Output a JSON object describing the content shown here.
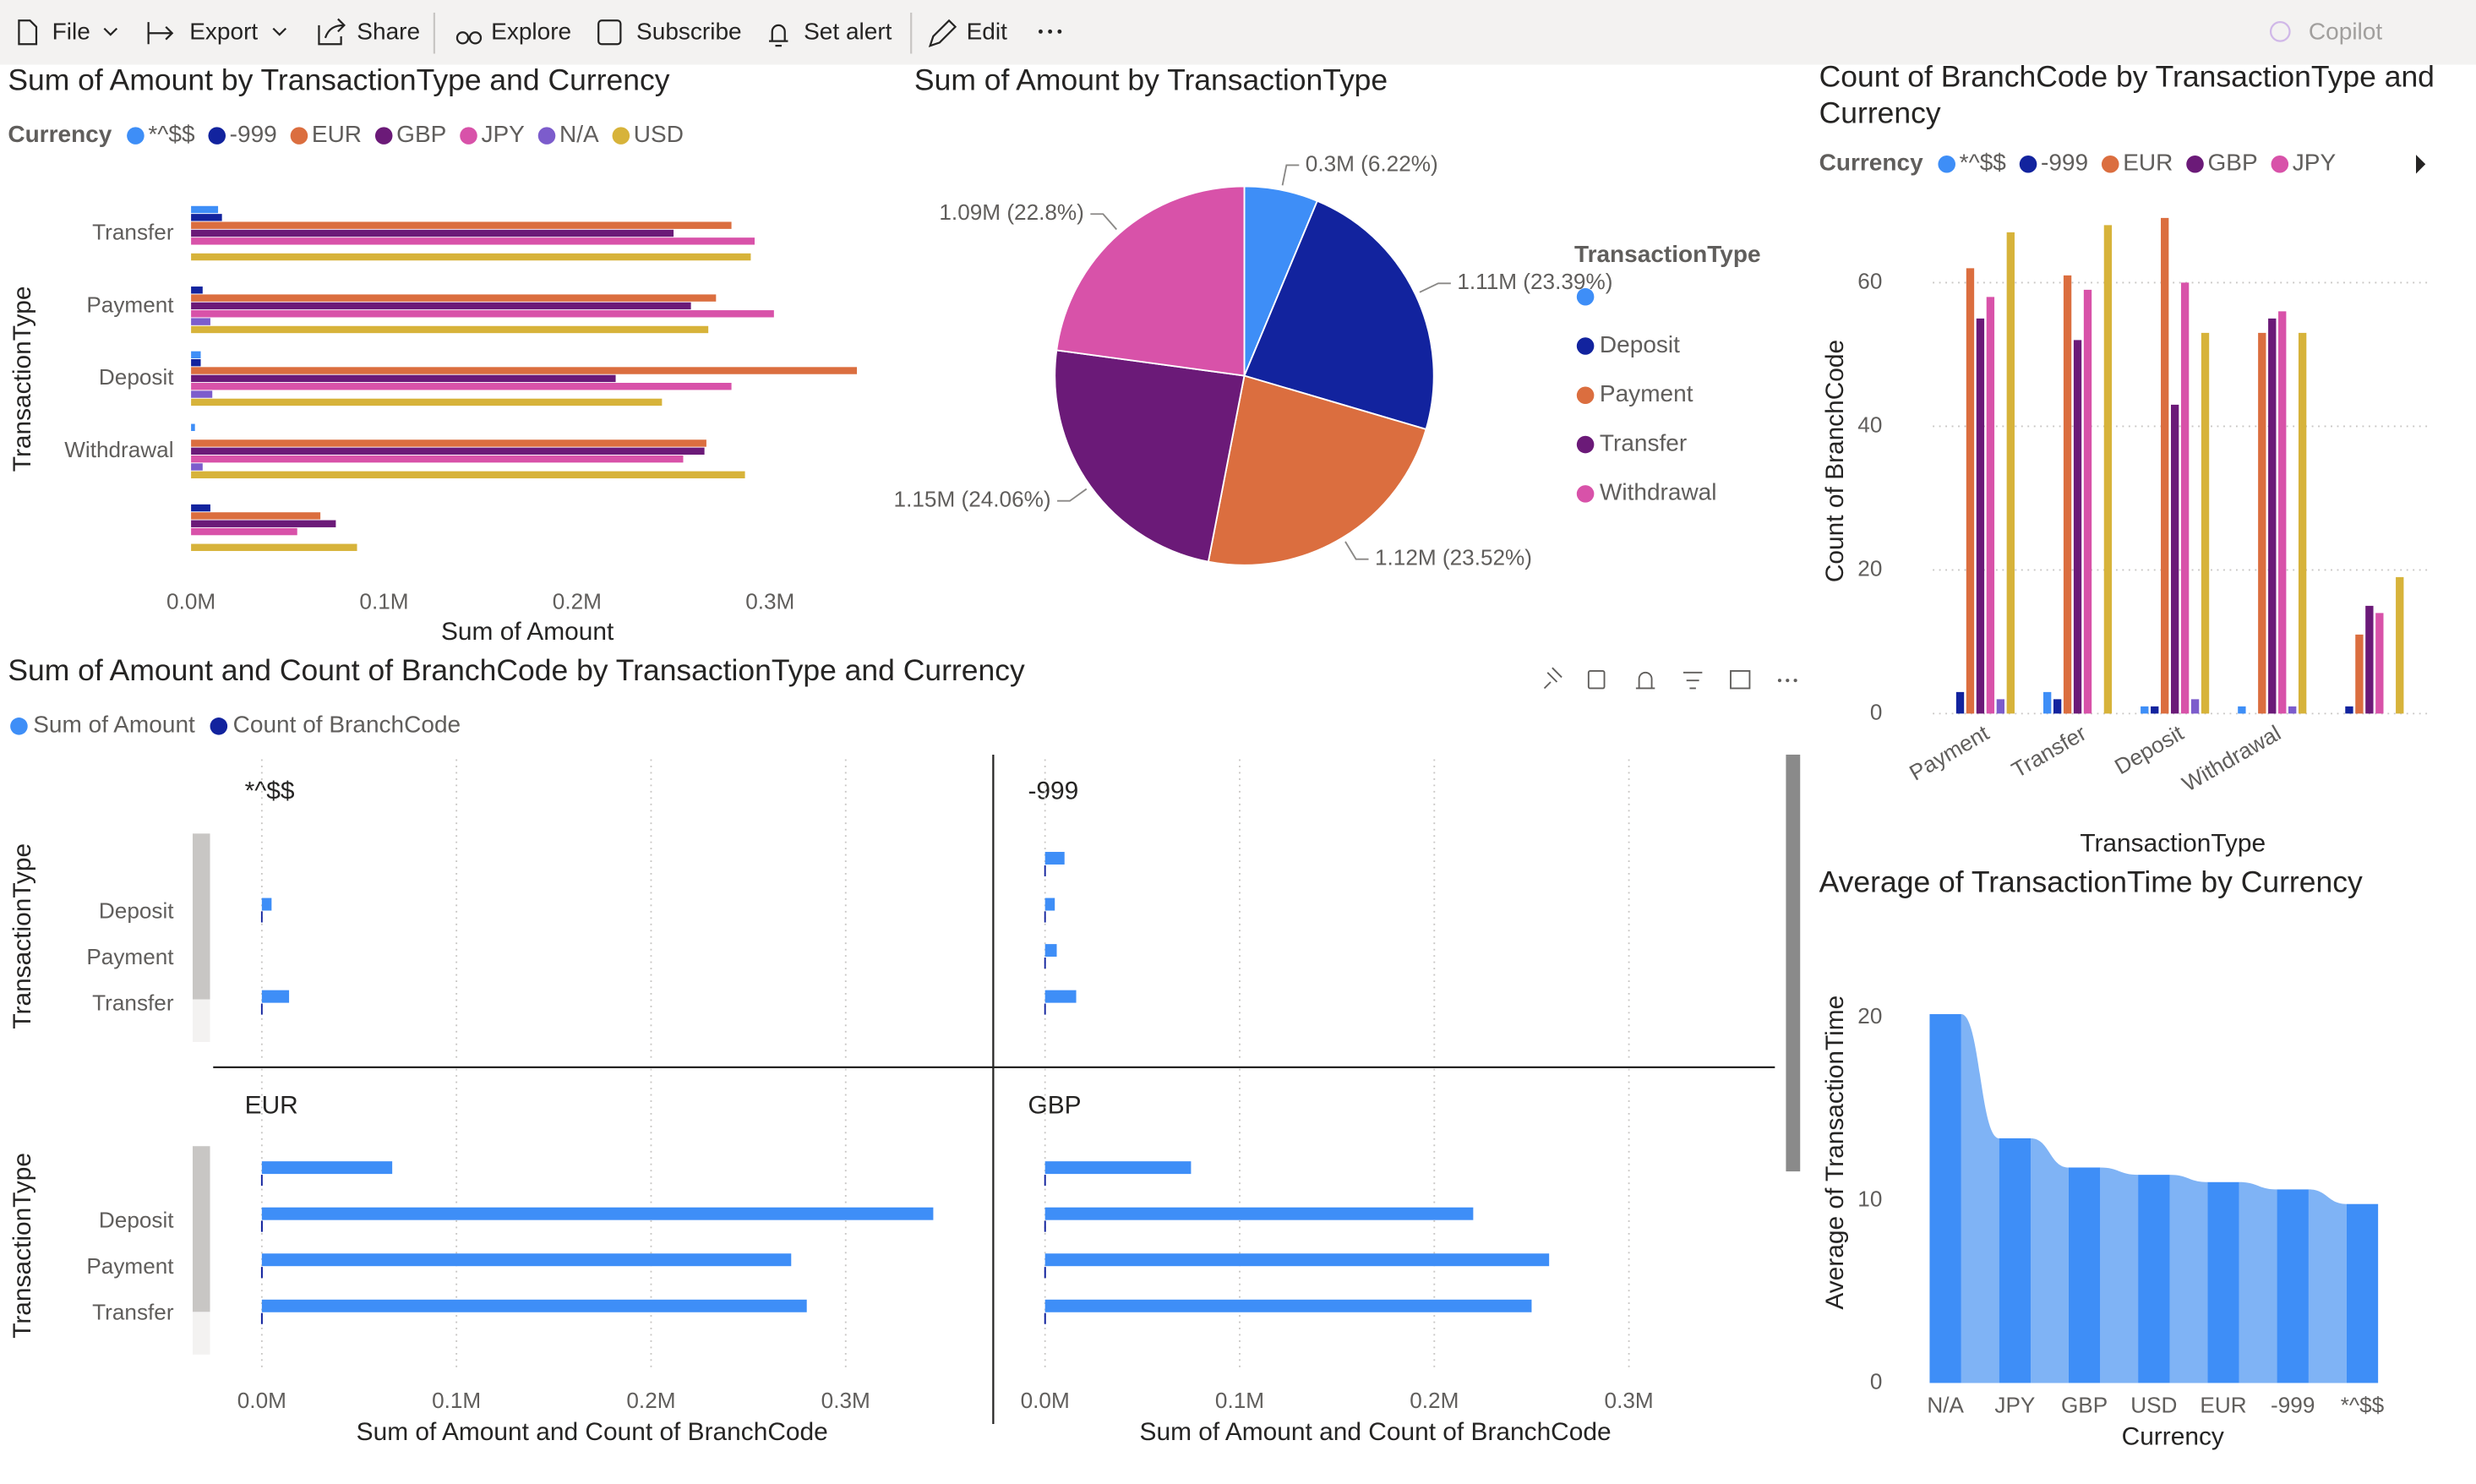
{
  "toolbar": {
    "items": [
      "File",
      "Export",
      "Share",
      "Explore",
      "Subscribe",
      "Set alert",
      "Edit"
    ],
    "copilot": "Copilot"
  },
  "chart_data": [
    {
      "type": "hbar",
      "title": "Sum of Amount by TransactionType and Currency",
      "legend_title": "Currency",
      "y_label": "TransactionType",
      "x_label": "Sum of Amount",
      "categories": [
        "Transfer",
        "Payment",
        "Deposit",
        "Withdrawal",
        null
      ],
      "series": [
        {
          "name": "*^$$",
          "color": "#3e8ef7",
          "values": [
            14000,
            null,
            5000,
            2000,
            null
          ]
        },
        {
          "name": "-999",
          "color": "#12239e",
          "values": [
            16000,
            6000,
            5000,
            null,
            10000
          ]
        },
        {
          "name": "EUR",
          "color": "#db6e3f",
          "values": [
            280000,
            272000,
            345000,
            267000,
            67000
          ]
        },
        {
          "name": "GBP",
          "color": "#6b1a78",
          "values": [
            250000,
            259000,
            220000,
            266000,
            75000
          ]
        },
        {
          "name": "JPY",
          "color": "#d852a9",
          "values": [
            292000,
            302000,
            280000,
            255000,
            55000
          ]
        },
        {
          "name": "N/A",
          "color": "#7c5ccc",
          "values": [
            null,
            10000,
            11000,
            6000,
            null
          ]
        },
        {
          "name": "USD",
          "color": "#d7b33a",
          "values": [
            290000,
            268000,
            244000,
            287000,
            86000
          ]
        }
      ],
      "xlim": [
        0,
        360000
      ],
      "xticks": [
        {
          "value": 0,
          "label": "0.0M"
        },
        {
          "value": 100000,
          "label": "0.1M"
        },
        {
          "value": 200000,
          "label": "0.2M"
        },
        {
          "value": 300000,
          "label": "0.3M"
        }
      ]
    },
    {
      "type": "pie",
      "title": "Sum of Amount by TransactionType",
      "legend_title": "TransactionType",
      "categories": [
        null,
        "Deposit",
        "Payment",
        "Transfer",
        "Withdrawal"
      ],
      "values": [
        300000,
        1110000,
        1120000,
        1150000,
        1090000
      ],
      "value_labels": [
        "0.3M (6.22%)",
        "1.11M (23.39%)",
        "1.12M (23.52%)",
        "1.15M (24.06%)",
        "1.09M (22.8%)"
      ],
      "colors": [
        "#3e8ef7",
        "#12239e",
        "#db6e3f",
        "#6b1a78",
        "#d852a9"
      ]
    },
    {
      "type": "column",
      "title": "Count of BranchCode by TransactionType and Currency",
      "legend_title": "Currency",
      "x_label": "TransactionType",
      "y_label": "Count of BranchCode",
      "categories": [
        "Payment",
        "Transfer",
        "Deposit",
        "Withdrawal",
        null
      ],
      "series": [
        {
          "name": "*^$$",
          "color": "#3e8ef7",
          "values": [
            null,
            3,
            1,
            1,
            null
          ]
        },
        {
          "name": "-999",
          "color": "#12239e",
          "values": [
            3,
            2,
            1,
            null,
            1
          ]
        },
        {
          "name": "EUR",
          "color": "#db6e3f",
          "values": [
            62,
            61,
            69,
            53,
            11
          ]
        },
        {
          "name": "GBP",
          "color": "#6b1a78",
          "values": [
            55,
            52,
            43,
            55,
            15
          ]
        },
        {
          "name": "JPY",
          "color": "#d852a9",
          "values": [
            58,
            59,
            60,
            56,
            14
          ]
        },
        {
          "color": "#7c5ccc",
          "values": [
            2,
            null,
            2,
            1,
            null
          ]
        },
        {
          "color": "#d7b33a",
          "values": [
            67,
            68,
            53,
            53,
            19
          ]
        }
      ],
      "ylim": [
        0,
        70
      ],
      "yticks": [
        0,
        20,
        40,
        60
      ],
      "grid": true
    },
    {
      "type": "small_multiple_hbar",
      "title": "Sum of Amount and Count of BranchCode by TransactionType and Currency",
      "y_label": "TransactionType",
      "x_label": "Sum of Amount and Count of BranchCode",
      "series": [
        {
          "name": "Sum of Amount",
          "color": "#3e8ef7"
        },
        {
          "name": "Count of BranchCode",
          "color": "#12239e"
        }
      ],
      "categories": [
        null,
        "Deposit",
        "Payment",
        "Transfer"
      ],
      "xlim": [
        -25000,
        375000
      ],
      "xticks": [
        {
          "value": 0,
          "label": "0.0M"
        },
        {
          "value": 100000,
          "label": "0.1M"
        },
        {
          "value": 200000,
          "label": "0.2M"
        },
        {
          "value": 300000,
          "label": "0.3M"
        }
      ],
      "grid": true,
      "panels": [
        {
          "title": "*^$$",
          "series": [
            {
              "values": [
                null,
                5000,
                null,
                14000
              ]
            },
            {
              "values": [
                null,
                1,
                null,
                3
              ]
            }
          ]
        },
        {
          "title": "-999",
          "series": [
            {
              "values": [
                10000,
                5000,
                6000,
                16000
              ]
            },
            {
              "values": [
                1,
                1,
                3,
                2
              ]
            }
          ]
        },
        {
          "title": "EUR",
          "series": [
            {
              "values": [
                67000,
                345000,
                272000,
                280000
              ]
            },
            {
              "values": [
                11,
                69,
                62,
                61
              ]
            }
          ]
        },
        {
          "title": "GBP",
          "series": [
            {
              "values": [
                75000,
                220000,
                259000,
                250000
              ]
            },
            {
              "values": [
                15,
                43,
                55,
                52
              ]
            }
          ]
        }
      ]
    },
    {
      "type": "ribbon_column",
      "title": "Average of TransactionTime by Currency",
      "x_label": "Currency",
      "y_label": "Average of TransactionTime",
      "categories": [
        "N/A",
        "JPY",
        "GBP",
        "USD",
        "EUR",
        "-999",
        "*^$$"
      ],
      "values": [
        20.2,
        13.4,
        11.8,
        11.4,
        11,
        10.6,
        9.8
      ],
      "color": "#3e8ef7",
      "ribbon_color": "#7fb3f5",
      "ylim": [
        0,
        23
      ],
      "yticks": [
        0,
        10,
        20
      ]
    }
  ]
}
